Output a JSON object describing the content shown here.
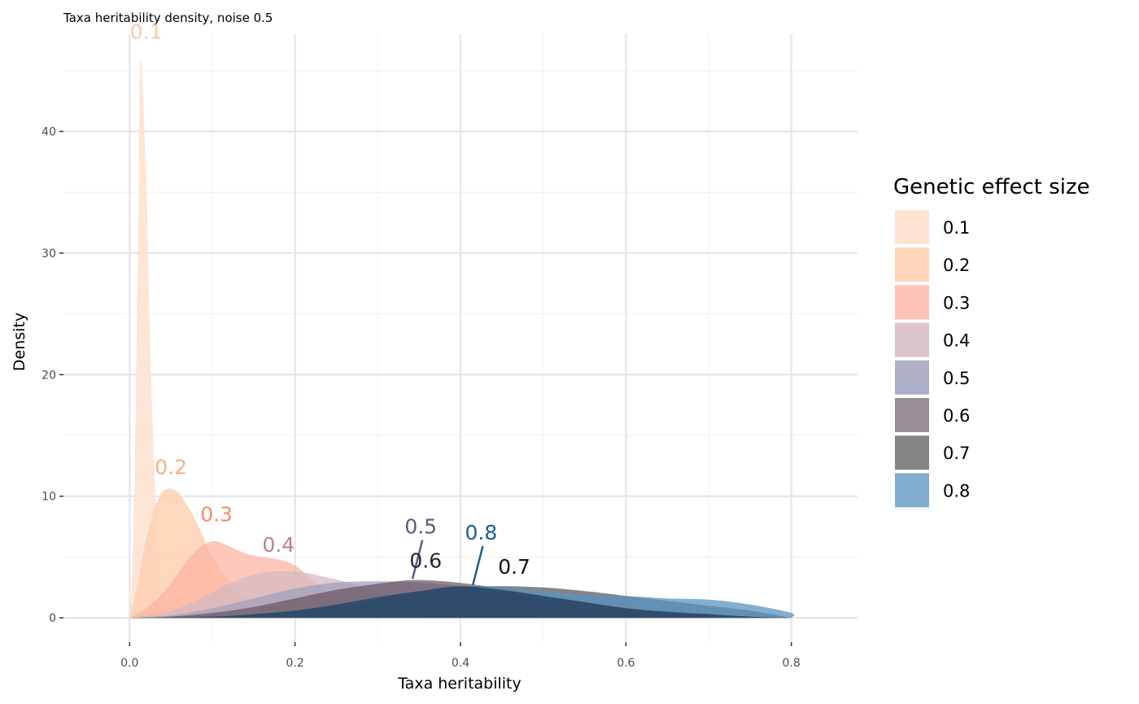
{
  "chart_data": {
    "type": "area",
    "title": "Taxa heritability density, noise 0.5",
    "xlabel": "Taxa heritability",
    "ylabel": "Density",
    "xlim": [
      -0.08,
      0.88
    ],
    "ylim": [
      -2.0,
      48.0
    ],
    "x_ticks": [
      0.0,
      0.2,
      0.4,
      0.6,
      0.8
    ],
    "x_tick_labels": [
      "0.0",
      "0.2",
      "0.4",
      "0.6",
      "0.8"
    ],
    "y_ticks": [
      0,
      10,
      20,
      30,
      40
    ],
    "y_tick_labels": [
      "0",
      "10",
      "20",
      "30",
      "40"
    ],
    "grid": true,
    "legend": {
      "title": "Genetic effect size",
      "placement": "right",
      "entries": [
        "0.1",
        "0.2",
        "0.3",
        "0.4",
        "0.5",
        "0.6",
        "0.7",
        "0.8"
      ]
    },
    "series": [
      {
        "name": "0.1",
        "color": "#fde3d2",
        "fill_opacity": 0.9,
        "label": "0.1",
        "label_color": "#f8c9a6",
        "label_pos": [
          0.02,
          47.5
        ],
        "label_anchor": [
          0.02,
          47.5
        ],
        "points": [
          [
            0.0,
            0
          ],
          [
            0.005,
            8
          ],
          [
            0.01,
            30
          ],
          [
            0.013,
            46
          ],
          [
            0.02,
            36
          ],
          [
            0.025,
            22
          ],
          [
            0.03,
            12
          ],
          [
            0.035,
            5
          ],
          [
            0.04,
            1.5
          ],
          [
            0.05,
            0.3
          ],
          [
            0.06,
            0
          ]
        ]
      },
      {
        "name": "0.2",
        "color": "#fdd0b3",
        "fill_opacity": 0.85,
        "label": "0.2",
        "label_color": "#f5b083",
        "label_pos": [
          0.05,
          11.7
        ],
        "label_anchor": [
          0.05,
          11.7
        ],
        "points": [
          [
            0.0,
            0
          ],
          [
            0.01,
            3
          ],
          [
            0.02,
            6.5
          ],
          [
            0.03,
            9
          ],
          [
            0.04,
            10.4
          ],
          [
            0.05,
            10.6
          ],
          [
            0.06,
            10.2
          ],
          [
            0.07,
            9.2
          ],
          [
            0.08,
            8
          ],
          [
            0.09,
            6.5
          ],
          [
            0.1,
            5
          ],
          [
            0.12,
            3
          ],
          [
            0.14,
            1.6
          ],
          [
            0.16,
            0.8
          ],
          [
            0.2,
            0.2
          ],
          [
            0.25,
            0
          ]
        ]
      },
      {
        "name": "0.3",
        "color": "#fcb4a1",
        "fill_opacity": 0.75,
        "label": "0.3",
        "label_color": "#f58a70",
        "label_pos": [
          0.105,
          7.8
        ],
        "label_anchor": [
          0.105,
          7.8
        ],
        "points": [
          [
            0.0,
            0
          ],
          [
            0.02,
            0.8
          ],
          [
            0.04,
            2
          ],
          [
            0.06,
            3.8
          ],
          [
            0.08,
            5.5
          ],
          [
            0.1,
            6.3
          ],
          [
            0.12,
            5.9
          ],
          [
            0.14,
            5.3
          ],
          [
            0.16,
            5.0
          ],
          [
            0.18,
            4.8
          ],
          [
            0.2,
            4.3
          ],
          [
            0.22,
            3.2
          ],
          [
            0.24,
            2
          ],
          [
            0.26,
            1
          ],
          [
            0.3,
            0.3
          ],
          [
            0.35,
            0
          ]
        ]
      },
      {
        "name": "0.4",
        "color": "#d5b9c2",
        "fill_opacity": 0.75,
        "label": "0.4",
        "label_color": "#b58490",
        "label_pos": [
          0.18,
          5.3
        ],
        "label_anchor": [
          0.18,
          5.3
        ],
        "points": [
          [
            0.0,
            0
          ],
          [
            0.04,
            0.4
          ],
          [
            0.08,
            1.4
          ],
          [
            0.12,
            2.8
          ],
          [
            0.16,
            3.7
          ],
          [
            0.2,
            3.8
          ],
          [
            0.24,
            3.3
          ],
          [
            0.28,
            2.6
          ],
          [
            0.32,
            1.7
          ],
          [
            0.36,
            0.9
          ],
          [
            0.4,
            0.4
          ],
          [
            0.45,
            0.1
          ],
          [
            0.5,
            0
          ]
        ]
      },
      {
        "name": "0.5",
        "color": "#a0a1bc",
        "fill_opacity": 0.75,
        "label": "0.5",
        "label_color": "#5c5a80",
        "label_pos": [
          0.352,
          6.8
        ],
        "label_anchor": [
          0.352,
          6.8
        ],
        "leader_to": [
          0.342,
          3.2
        ],
        "points": [
          [
            0.0,
            0
          ],
          [
            0.05,
            0.2
          ],
          [
            0.1,
            0.8
          ],
          [
            0.15,
            1.6
          ],
          [
            0.2,
            2.4
          ],
          [
            0.25,
            2.9
          ],
          [
            0.3,
            3.0
          ],
          [
            0.35,
            2.9
          ],
          [
            0.4,
            2.6
          ],
          [
            0.45,
            2.1
          ],
          [
            0.5,
            1.5
          ],
          [
            0.55,
            0.9
          ],
          [
            0.6,
            0.5
          ],
          [
            0.65,
            0.2
          ],
          [
            0.7,
            0
          ]
        ]
      },
      {
        "name": "0.6",
        "color": "#6a5260",
        "fill_opacity": 0.7,
        "label": "0.6",
        "label_color": "#2b2433",
        "label_pos": [
          0.358,
          4.0
        ],
        "label_anchor": [
          0.358,
          4.0
        ],
        "points": [
          [
            0.0,
            0
          ],
          [
            0.05,
            0.1
          ],
          [
            0.1,
            0.4
          ],
          [
            0.15,
            0.9
          ],
          [
            0.2,
            1.6
          ],
          [
            0.25,
            2.3
          ],
          [
            0.3,
            2.8
          ],
          [
            0.34,
            3.1
          ],
          [
            0.38,
            3.0
          ],
          [
            0.42,
            2.7
          ],
          [
            0.46,
            2.3
          ],
          [
            0.5,
            1.8
          ],
          [
            0.55,
            1.3
          ],
          [
            0.6,
            0.8
          ],
          [
            0.65,
            0.5
          ],
          [
            0.7,
            0.3
          ],
          [
            0.75,
            0.1
          ],
          [
            0.8,
            0
          ]
        ]
      },
      {
        "name": "0.7",
        "color": "#505050",
        "fill_opacity": 0.7,
        "label": "0.7",
        "label_color": "#111111",
        "label_pos": [
          0.465,
          3.5
        ],
        "label_anchor": [
          0.465,
          3.5
        ],
        "points": [
          [
            0.0,
            0
          ],
          [
            0.1,
            0.1
          ],
          [
            0.15,
            0.3
          ],
          [
            0.2,
            0.6
          ],
          [
            0.25,
            1.0
          ],
          [
            0.3,
            1.5
          ],
          [
            0.35,
            2.0
          ],
          [
            0.4,
            2.5
          ],
          [
            0.45,
            2.6
          ],
          [
            0.5,
            2.5
          ],
          [
            0.55,
            2.2
          ],
          [
            0.6,
            1.8
          ],
          [
            0.65,
            1.4
          ],
          [
            0.7,
            1.0
          ],
          [
            0.75,
            0.6
          ],
          [
            0.8,
            0
          ]
        ]
      },
      {
        "name": "0.8",
        "color": "#5894c2",
        "fill_opacity": 0.75,
        "label": "0.8",
        "label_color": "#1a5f95",
        "label_pos": [
          0.425,
          6.3
        ],
        "label_anchor": [
          0.425,
          6.3
        ],
        "leader_to": [
          0.415,
          2.7
        ],
        "points": [
          [
            0.0,
            0
          ],
          [
            0.1,
            0.1
          ],
          [
            0.15,
            0.3
          ],
          [
            0.2,
            0.6
          ],
          [
            0.25,
            1.1
          ],
          [
            0.3,
            1.7
          ],
          [
            0.35,
            2.2
          ],
          [
            0.4,
            2.6
          ],
          [
            0.45,
            2.5
          ],
          [
            0.5,
            2.2
          ],
          [
            0.55,
            1.9
          ],
          [
            0.6,
            1.8
          ],
          [
            0.65,
            1.6
          ],
          [
            0.7,
            1.5
          ],
          [
            0.75,
            1.1
          ],
          [
            0.8,
            0.4
          ],
          [
            0.8,
            0
          ]
        ]
      }
    ],
    "legend_swatch_colors": [
      "#fde3d2",
      "#fdd5bb",
      "#fdc3b6",
      "#dcc5cb",
      "#adb0c8",
      "#9a8f98",
      "#858585",
      "#7faecf"
    ],
    "overlap_tint": "#233a5a"
  }
}
